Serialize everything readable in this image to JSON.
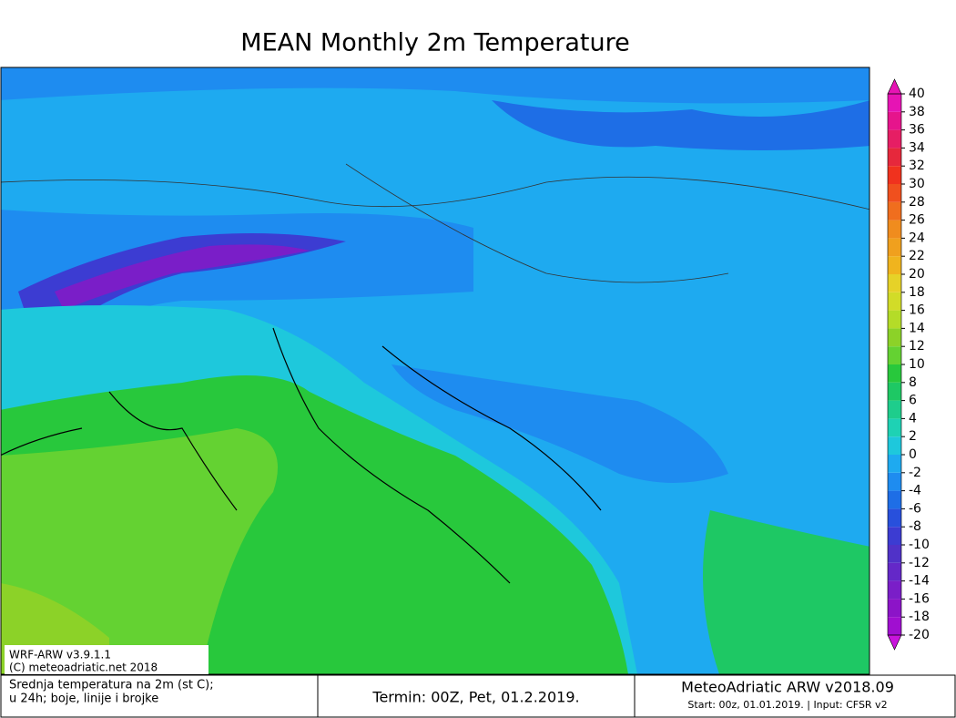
{
  "header": {
    "title": "MEAN Monthly 2m Temperature"
  },
  "colorbar": {
    "ticks": [
      -20,
      -18,
      -16,
      -14,
      -12,
      -10,
      -8,
      -6,
      -4,
      -2,
      0,
      2,
      4,
      6,
      8,
      10,
      12,
      14,
      16,
      18,
      20,
      22,
      24,
      26,
      28,
      30,
      32,
      34,
      36,
      38,
      40
    ],
    "colors": [
      "#a00fd0",
      "#8c14c8",
      "#7a1ec8",
      "#6428c8",
      "#5032c8",
      "#3c3cd2",
      "#2850dc",
      "#1e6ee6",
      "#1e8cf0",
      "#1eaaf0",
      "#1ec8dc",
      "#1ed2b4",
      "#1ecd8c",
      "#1ec864",
      "#28c83c",
      "#64d232",
      "#8cd228",
      "#b4dc28",
      "#d2dc28",
      "#e6d228",
      "#f0b41e",
      "#f0a01e",
      "#f08c1e",
      "#f06e1e",
      "#f0501e",
      "#f0321e",
      "#e6283c",
      "#e61e64",
      "#e6148c",
      "#e614b4"
    ],
    "low_color": "#c814dc",
    "high_color": "#e614b4"
  },
  "model_box": {
    "line1": "WRF-ARW v3.9.1.1",
    "line2": "(C) meteoadriatic.net 2018"
  },
  "footer": {
    "description1": "Srednja temperatura na 2m (st C);",
    "description2": "u 24h; boje, linije i brojke",
    "termin": "Termin: 00Z, Pet, 01.2.2019.",
    "brand": "MeteoAdriatic ARW v2018.09",
    "start": "Start: 00z, 01.01.2019. | Input: CFSR v2"
  }
}
